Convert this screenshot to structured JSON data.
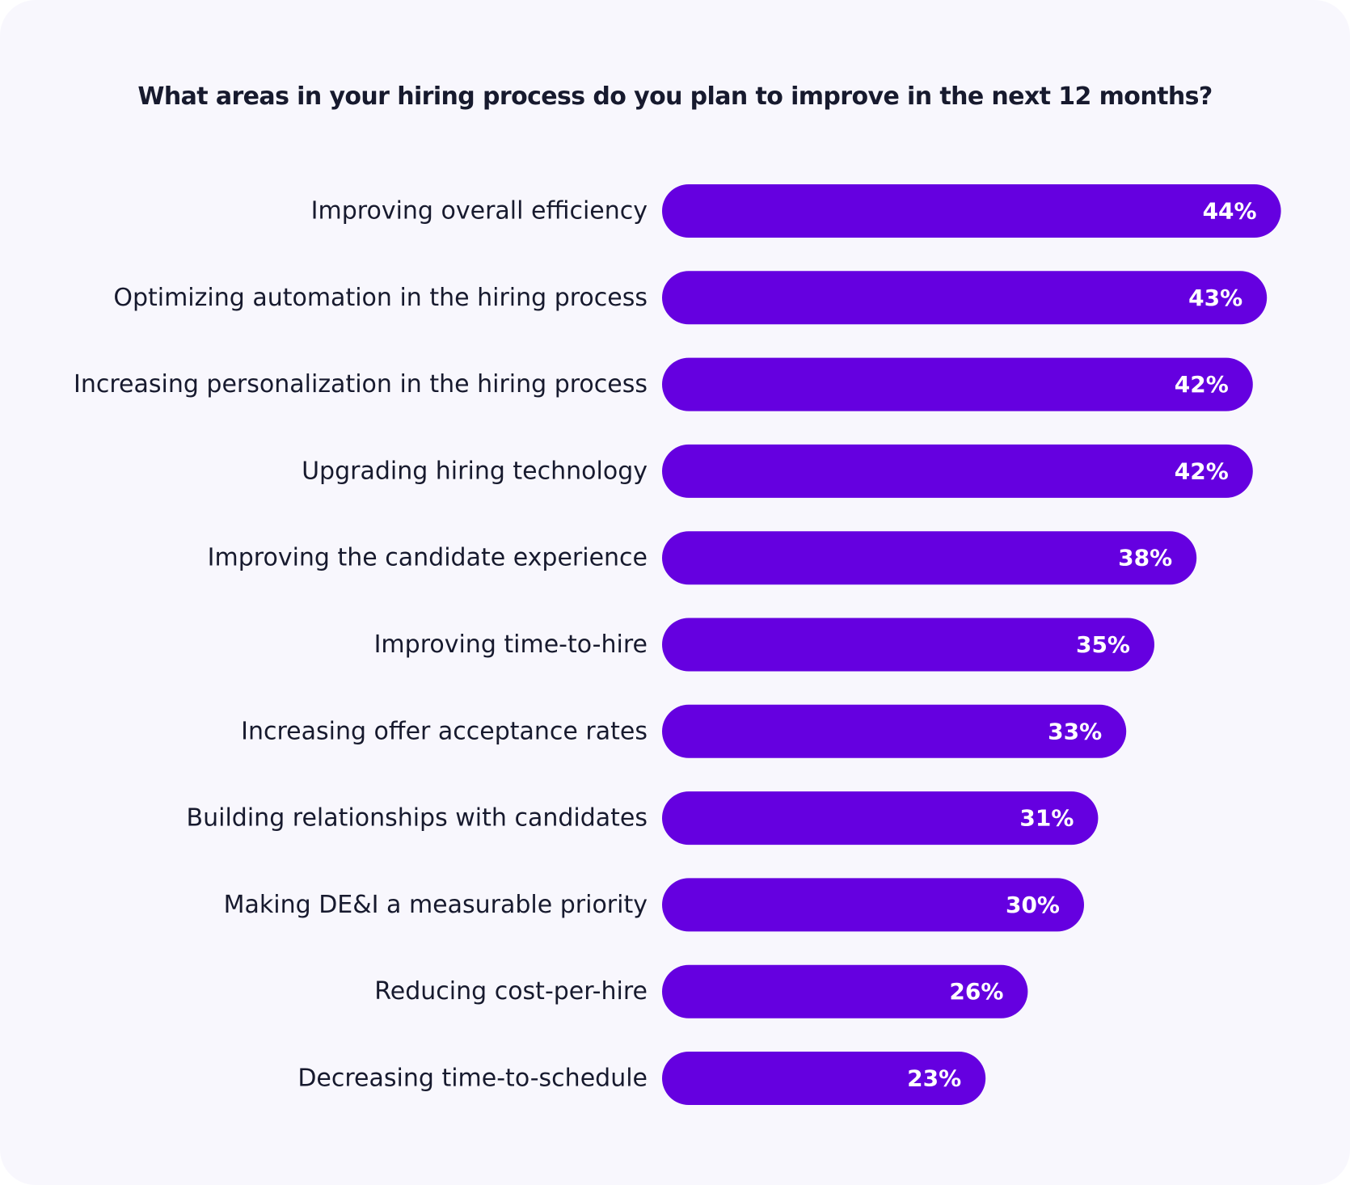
{
  "chart_data": {
    "type": "bar",
    "orientation": "horizontal",
    "title": "What areas in your hiring process do you plan to improve in the next 12 months?",
    "categories": [
      "Improving overall efficiency",
      "Optimizing automation in the hiring process",
      "Increasing personalization in the hiring process",
      "Upgrading hiring technology",
      "Improving the candidate experience",
      "Improving time-to-hire",
      "Increasing offer acceptance rates",
      "Building relationships with candidates",
      "Making DE&I a measurable priority",
      "Reducing cost-per-hire",
      "Decreasing time-to-schedule"
    ],
    "values": [
      44,
      43,
      42,
      42,
      38,
      35,
      33,
      31,
      30,
      26,
      23
    ],
    "value_labels": [
      "44%",
      "43%",
      "42%",
      "42%",
      "38%",
      "35%",
      "33%",
      "31%",
      "30%",
      "26%",
      "23%"
    ],
    "xlabel": "",
    "ylabel": "",
    "grid": false,
    "legend": "none",
    "colors": {
      "bar": "#6500e0",
      "value_text": "#ffffff",
      "label_text": "#171a2e",
      "background": "#f8f7fd"
    }
  }
}
